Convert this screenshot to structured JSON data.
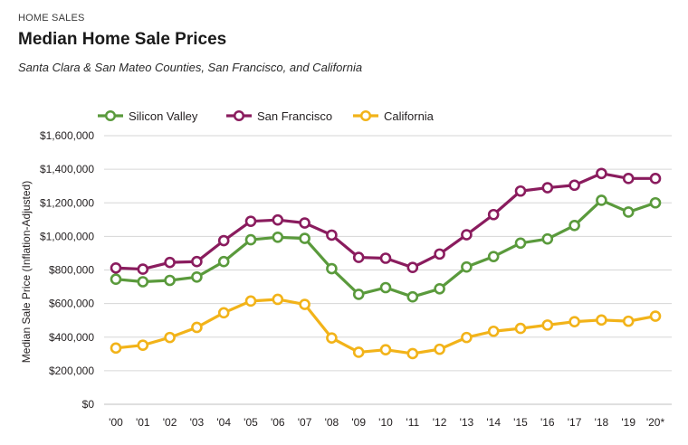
{
  "header": {
    "kicker": "HOME SALES",
    "title": "Median Home Sale Prices",
    "subtitle": "Santa Clara & San Mateo Counties, San Francisco, and California"
  },
  "chart_data": {
    "type": "line",
    "ylabel": "Median Sale Price (Inflation-Adjusted)",
    "xlabel": "",
    "ylim": [
      0,
      1600000
    ],
    "yticks": [
      0,
      200000,
      400000,
      600000,
      800000,
      1000000,
      1200000,
      1400000,
      1600000
    ],
    "ytick_labels": [
      "$0",
      "$200,000",
      "$400,000",
      "$600,000",
      "$800,000",
      "$1,000,000",
      "$1,200,000",
      "$1,400,000",
      "$1,600,000"
    ],
    "categories": [
      "'00",
      "'01",
      "'02",
      "'03",
      "'04",
      "'05",
      "'06",
      "'07",
      "'08",
      "'09",
      "'10",
      "'11",
      "'12",
      "'13",
      "'14",
      "'15",
      "'16",
      "'17",
      "'18",
      "'19",
      "'20*"
    ],
    "grid": true,
    "legend_position": "top-left",
    "series": [
      {
        "name": "Silicon Valley",
        "color": "#5a9a3c",
        "values": [
          745000,
          730000,
          738000,
          758000,
          850000,
          980000,
          995000,
          988000,
          808000,
          655000,
          695000,
          640000,
          688000,
          818000,
          880000,
          960000,
          985000,
          1065000,
          1215000,
          1145000,
          1200000
        ]
      },
      {
        "name": "San Francisco",
        "color": "#8a1c5e",
        "values": [
          812000,
          805000,
          845000,
          850000,
          975000,
          1090000,
          1098000,
          1080000,
          1008000,
          875000,
          870000,
          815000,
          895000,
          1010000,
          1130000,
          1270000,
          1290000,
          1305000,
          1375000,
          1345000,
          1345000
        ]
      },
      {
        "name": "California",
        "color": "#f2b319",
        "values": [
          335000,
          352000,
          398000,
          458000,
          545000,
          615000,
          625000,
          595000,
          395000,
          310000,
          325000,
          302000,
          328000,
          398000,
          435000,
          452000,
          472000,
          492000,
          502000,
          495000,
          525000
        ]
      }
    ]
  }
}
